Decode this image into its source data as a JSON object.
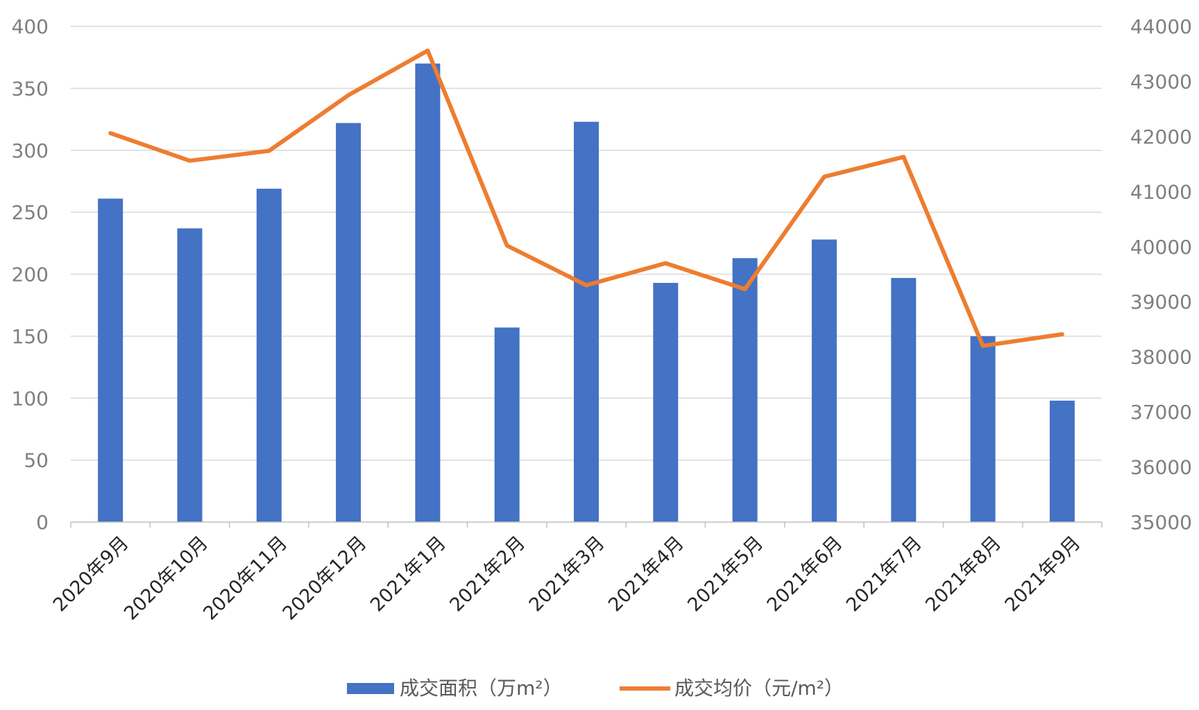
{
  "chart_data": {
    "type": "bar",
    "categories": [
      "2020年9月",
      "2020年10月",
      "2020年11月",
      "2020年12月",
      "2021年1月",
      "2021年2月",
      "2021年3月",
      "2021年4月",
      "2021年5月",
      "2021年6月",
      "2021年7月",
      "2021年8月",
      "2021年9月"
    ],
    "series": [
      {
        "name": "成交面积（万m²）",
        "type": "bar",
        "axis": "left",
        "color": "#4472c4",
        "values": [
          261,
          237,
          269,
          322,
          370,
          157,
          323,
          193,
          213,
          228,
          197,
          150,
          98
        ]
      },
      {
        "name": "成交均价（元/m²）",
        "type": "line",
        "axis": "right",
        "color": "#ed7d31",
        "values": [
          42060,
          41560,
          41740,
          42750,
          43560,
          40020,
          39300,
          39700,
          39230,
          41270,
          41630,
          38200,
          38410
        ]
      }
    ],
    "y_left": {
      "range": [
        0,
        400
      ],
      "ticks": [
        "0",
        "50",
        "100",
        "150",
        "200",
        "250",
        "300",
        "350",
        "400"
      ]
    },
    "y_right": {
      "range": [
        35000,
        44000
      ],
      "ticks": [
        "35000",
        "36000",
        "37000",
        "38000",
        "39000",
        "40000",
        "41000",
        "42000",
        "43000",
        "44000"
      ]
    },
    "grid": true,
    "legend_position": "bottom"
  }
}
